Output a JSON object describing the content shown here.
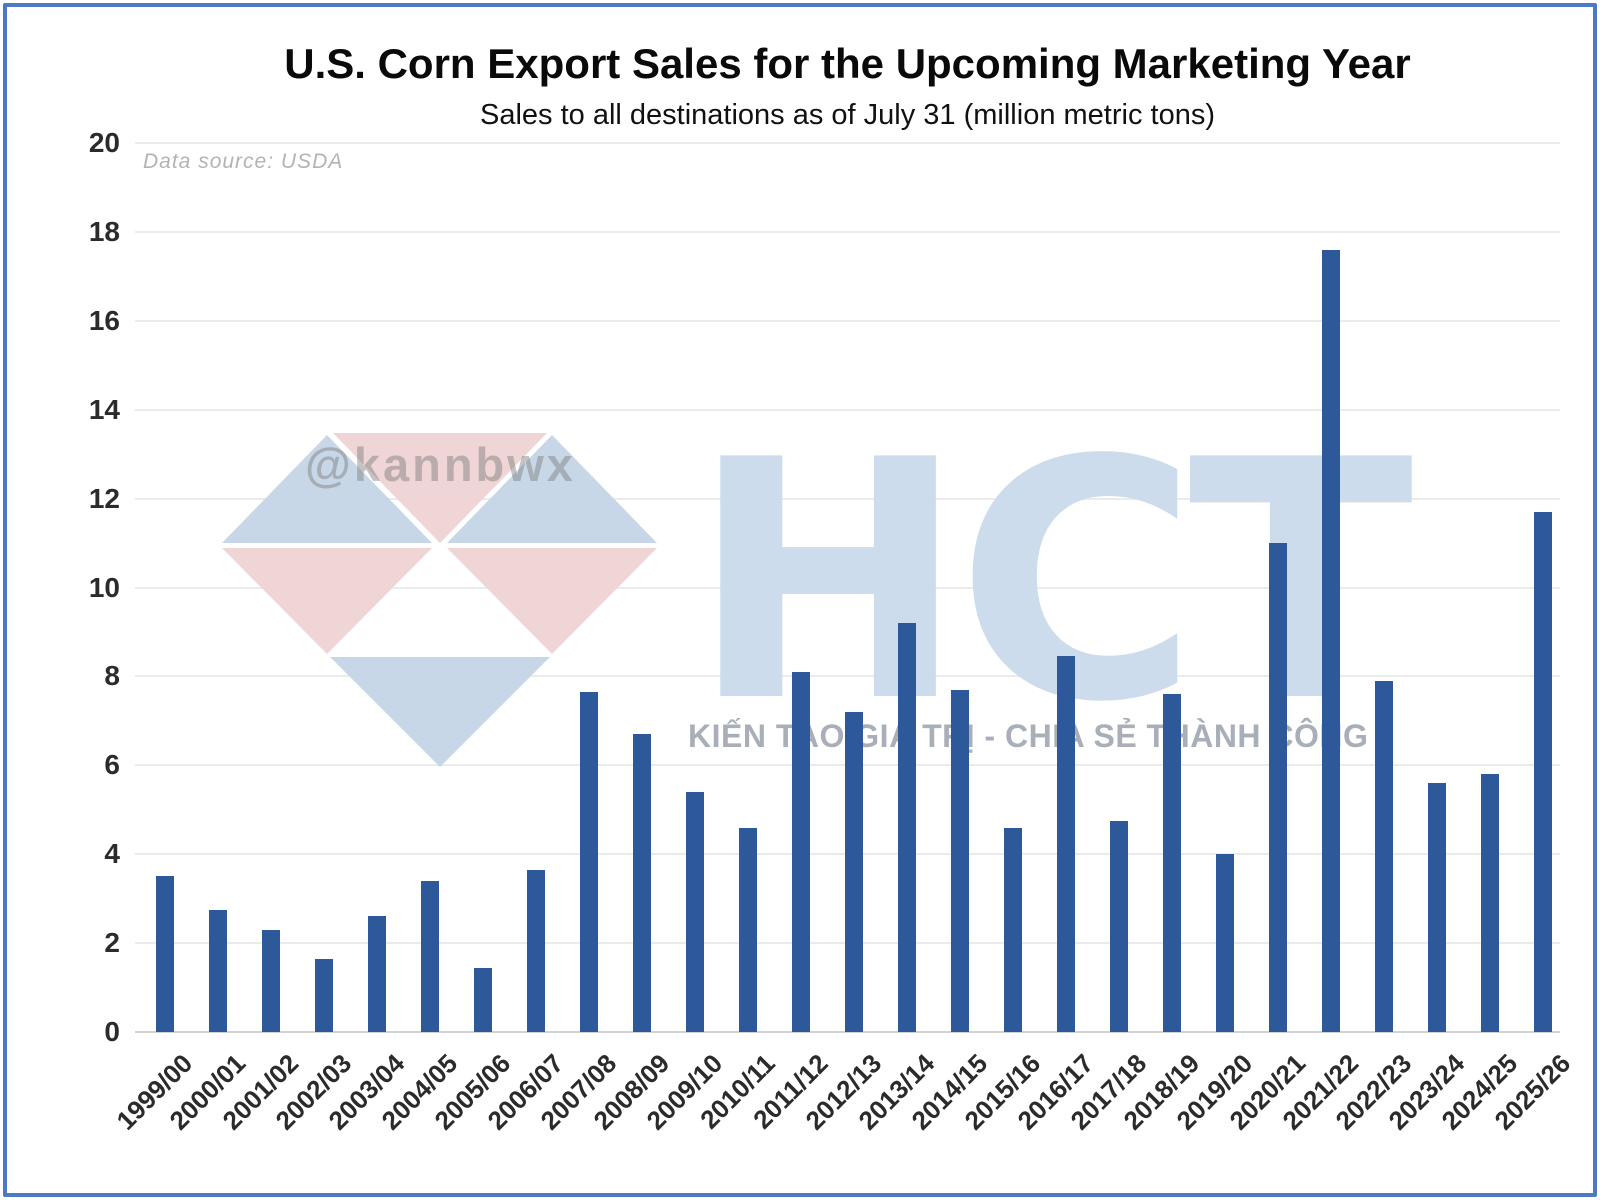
{
  "frame": {
    "border_color": "#4c78c4"
  },
  "source_note": "Data source: USDA",
  "watermarks": {
    "handle": "@kannbwx",
    "brand": "HCT",
    "slogan": "KIẾN TẠO GIÁ TRỊ - CHIA SẺ THÀNH CÔNG",
    "brand_color": "#ccdcec",
    "logo_blue": "#c6d5e6",
    "logo_pink": "#efd3d3"
  },
  "chart_data": {
    "type": "bar",
    "title": "U.S. Corn Export Sales for the Upcoming Marketing Year",
    "subtitle": "Sales to all destinations as of July 31 (million metric tons)",
    "source_note": "Data source: USDA",
    "categories": [
      "1999/00",
      "2000/01",
      "2001/02",
      "2002/03",
      "2003/04",
      "2004/05",
      "2005/06",
      "2006/07",
      "2007/08",
      "2008/09",
      "2009/10",
      "2010/11",
      "2011/12",
      "2012/13",
      "2013/14",
      "2014/15",
      "2015/16",
      "2016/17",
      "2017/18",
      "2018/19",
      "2019/20",
      "2020/21",
      "2021/22",
      "2022/23",
      "2023/24",
      "2024/25",
      "2025/26"
    ],
    "values": [
      3.5,
      2.75,
      2.3,
      1.65,
      2.6,
      3.4,
      1.45,
      3.65,
      7.65,
      6.7,
      5.4,
      4.6,
      8.1,
      7.2,
      9.2,
      7.7,
      4.6,
      8.45,
      4.75,
      7.6,
      4.0,
      11.0,
      17.6,
      7.9,
      5.6,
      5.8,
      11.7
    ],
    "xlabel": "",
    "ylabel": "",
    "ylim": [
      0,
      20
    ],
    "ytick_step": 2,
    "grid": true,
    "legend": "none",
    "bar_color": "#2d5899",
    "gridline_color": "#ebebeb",
    "tick_label_color": "#2b2b2b"
  }
}
